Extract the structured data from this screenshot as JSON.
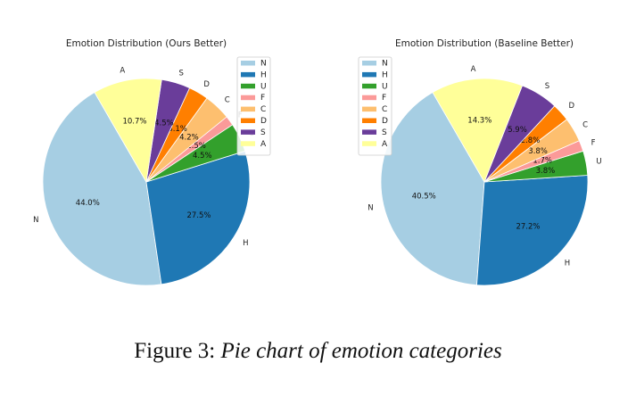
{
  "chart_data": [
    {
      "type": "pie",
      "title": "Emotion Distribution (Ours Better)",
      "start_angle_deg": 120,
      "direction": "counterclockwise",
      "slices": [
        {
          "label": "N",
          "value": 44.0,
          "pct_label": "44.0%",
          "color": "#a6cee3"
        },
        {
          "label": "H",
          "value": 27.5,
          "pct_label": "27.5%",
          "color": "#1f78b4"
        },
        {
          "label": "U",
          "value": 4.5,
          "pct_label": "4.5%",
          "color": "#33a02c"
        },
        {
          "label": "F",
          "value": 1.5,
          "pct_label": "1.5%",
          "color": "#fb9a99"
        },
        {
          "label": "C",
          "value": 4.2,
          "pct_label": "4.2%",
          "color": "#fdbf6f"
        },
        {
          "label": "D",
          "value": 3.1,
          "pct_label": "3.1%",
          "color": "#ff7f00"
        },
        {
          "label": "S",
          "value": 4.5,
          "pct_label": "4.5%",
          "color": "#6a3d9a"
        },
        {
          "label": "A",
          "value": 10.7,
          "pct_label": "10.7%",
          "color": "#ffff99"
        }
      ],
      "legend": [
        "N",
        "H",
        "U",
        "F",
        "C",
        "D",
        "S",
        "A"
      ],
      "legend_placement": "top-right"
    },
    {
      "type": "pie",
      "title": "Emotion Distribution (Baseline Better)",
      "start_angle_deg": 120,
      "direction": "counterclockwise",
      "slices": [
        {
          "label": "N",
          "value": 40.5,
          "pct_label": "40.5%",
          "color": "#a6cee3"
        },
        {
          "label": "H",
          "value": 27.2,
          "pct_label": "27.2%",
          "color": "#1f78b4"
        },
        {
          "label": "U",
          "value": 3.8,
          "pct_label": "3.8%",
          "color": "#33a02c"
        },
        {
          "label": "F",
          "value": 1.7,
          "pct_label": "1.7%",
          "color": "#fb9a99"
        },
        {
          "label": "C",
          "value": 3.8,
          "pct_label": "3.8%",
          "color": "#fdbf6f"
        },
        {
          "label": "D",
          "value": 2.8,
          "pct_label": "2.8%",
          "color": "#ff7f00"
        },
        {
          "label": "S",
          "value": 5.9,
          "pct_label": "5.9%",
          "color": "#6a3d9a"
        },
        {
          "label": "A",
          "value": 14.3,
          "pct_label": "14.3%",
          "color": "#ffff99"
        }
      ],
      "legend": [
        "N",
        "H",
        "U",
        "F",
        "C",
        "D",
        "S",
        "A"
      ],
      "legend_placement": "top-left"
    }
  ],
  "caption": {
    "prefix": "Figure 3: ",
    "text": "Pie chart of emotion categories"
  }
}
